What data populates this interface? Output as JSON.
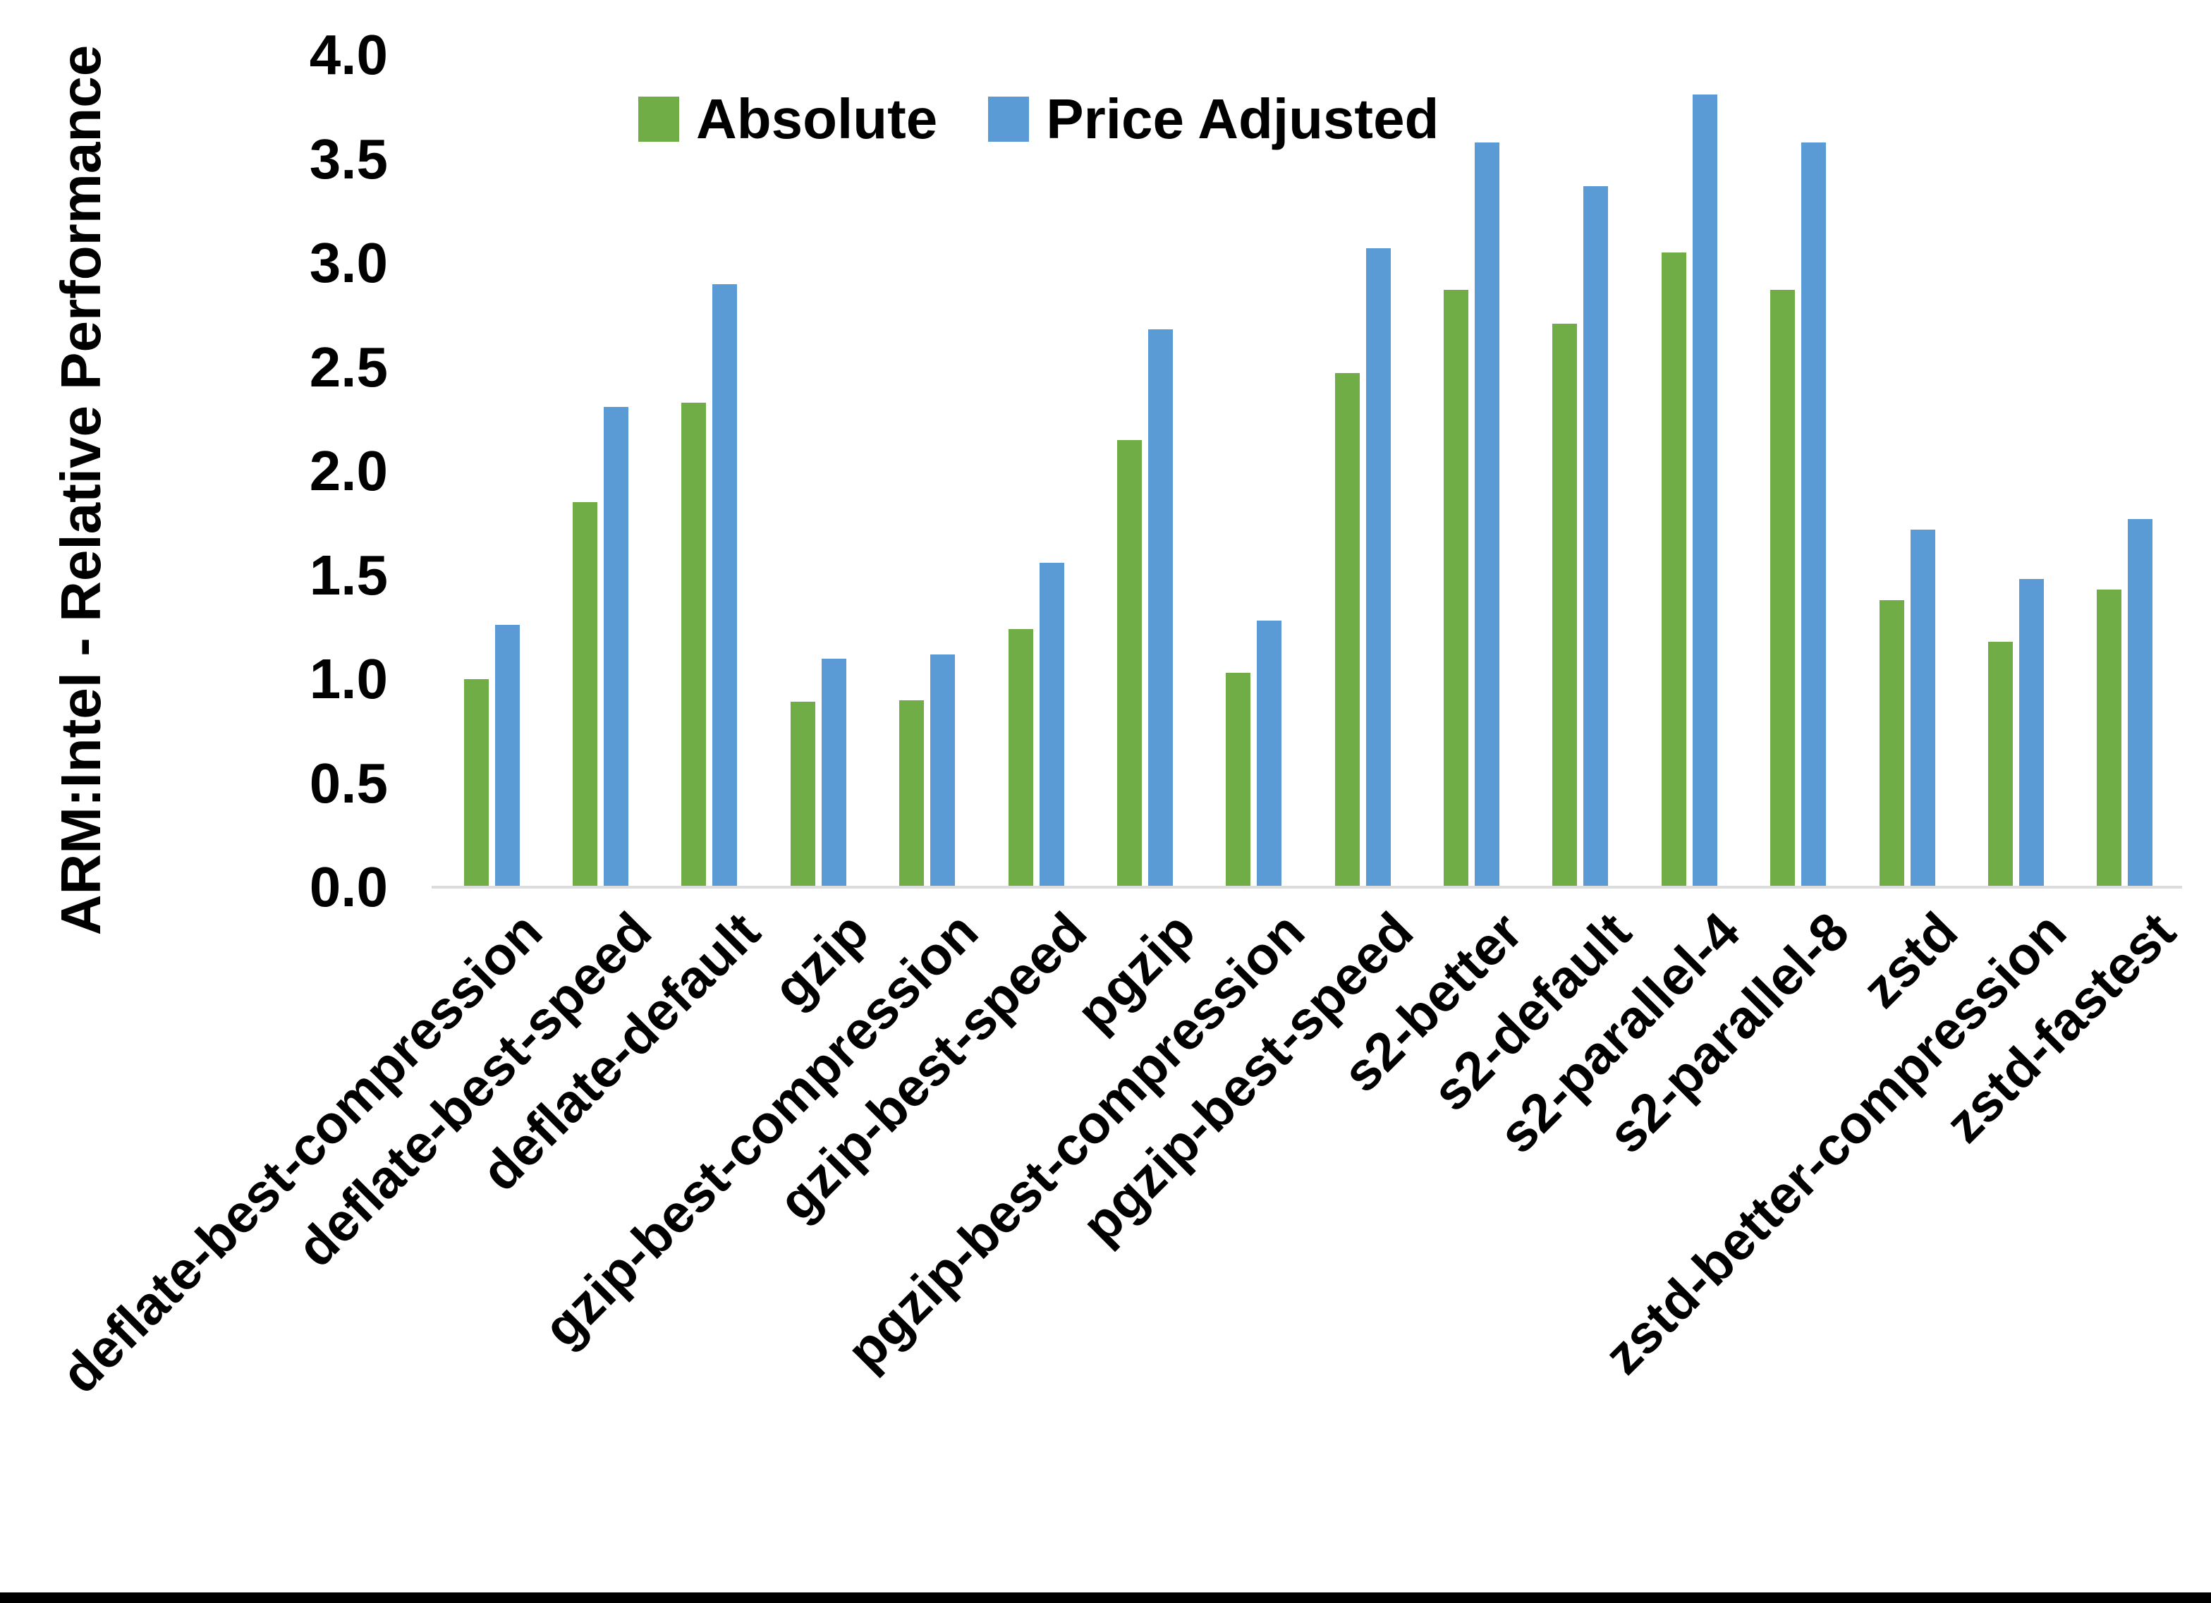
{
  "chart_data": {
    "type": "bar",
    "title": "",
    "xlabel": "",
    "ylabel": "ARM:Intel - Relative Performance",
    "ylim": [
      0,
      4.0
    ],
    "ytick_step": 0.5,
    "ytick_labels": [
      "0.0",
      "0.5",
      "1.0",
      "1.5",
      "2.0",
      "2.5",
      "3.0",
      "3.5",
      "4.0"
    ],
    "grid": false,
    "legend_position": "top-center",
    "categories": [
      "deflate-best-compression",
      "deflate-best-speed",
      "deflate-default",
      "gzip",
      "gzip-best-compression",
      "gzip-best-speed",
      "pgzip",
      "pgzip-best-compression",
      "pgzip-best-speed",
      "s2-better",
      "s2-default",
      "s2-parallel-4",
      "s2-parallel-8",
      "zstd",
      "zstd-better-compression",
      "zstd-fastest"
    ],
    "series": [
      {
        "name": "Absolute",
        "color": "#70AD47",
        "values": [
          1.0,
          1.85,
          2.33,
          0.89,
          0.9,
          1.24,
          2.15,
          1.03,
          2.47,
          2.87,
          2.71,
          3.05,
          2.87,
          1.38,
          1.18,
          1.43
        ]
      },
      {
        "name": "Price Adjusted",
        "color": "#5B9BD5",
        "values": [
          1.26,
          2.31,
          2.9,
          1.1,
          1.12,
          1.56,
          2.68,
          1.28,
          3.07,
          3.58,
          3.37,
          3.81,
          3.58,
          1.72,
          1.48,
          1.77
        ]
      }
    ]
  },
  "axis": {
    "line_color": "#DCDCDC",
    "text_color": "#000000"
  },
  "page": {
    "background": "#FFFFFF",
    "bottom_border_color": "#000000"
  }
}
